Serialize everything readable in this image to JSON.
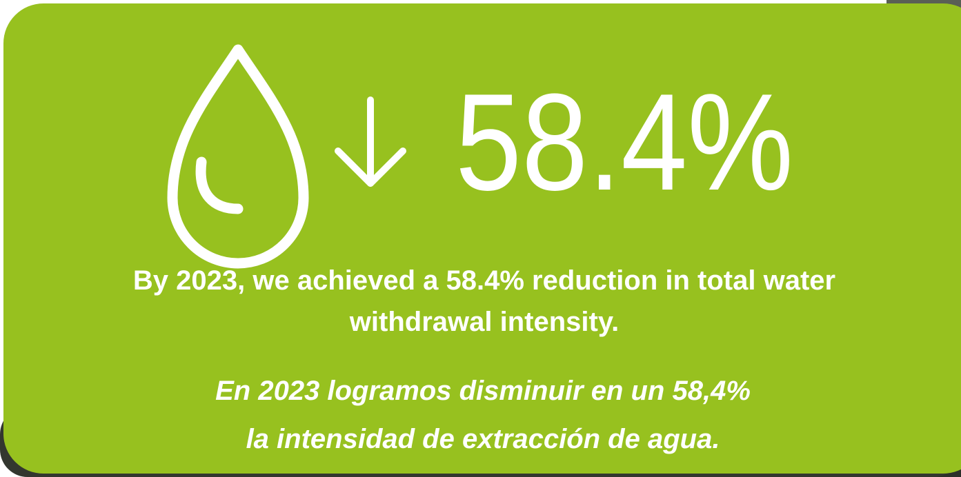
{
  "metric": "58.4%",
  "english": [
    "By 2023, we achieved a 58.4% reduction in total water",
    "withdrawal intensity."
  ],
  "spanish": [
    "En 2023 logramos disminuir en un 58,4%",
    "la intensidad de extracción de agua."
  ]
}
